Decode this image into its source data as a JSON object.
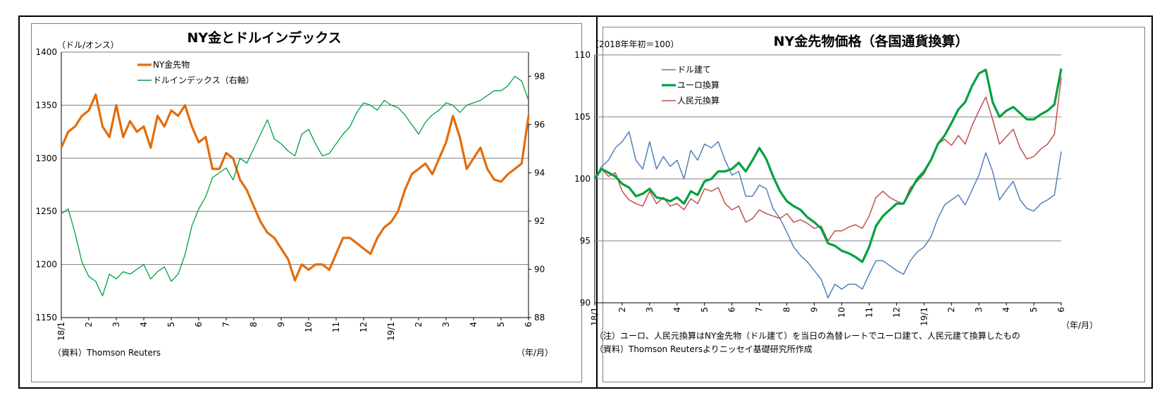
{
  "chart_data": [
    {
      "type": "line",
      "title": "NY金とドルインデックス",
      "ylabel": "（ドル/オンス）",
      "xlabel": "（年/月）",
      "source": "（資料）Thomson Reuters",
      "x_ticks": [
        "18/1",
        "2",
        "3",
        "4",
        "5",
        "6",
        "7",
        "8",
        "9",
        "10",
        "11",
        "12",
        "19/1",
        "2",
        "3",
        "4",
        "5",
        "6"
      ],
      "y_left": {
        "ylim": [
          1150,
          1400
        ],
        "ticks": [
          "1150",
          "1200",
          "1250",
          "1300",
          "1350",
          "1400"
        ]
      },
      "y_right": {
        "ylim": [
          88,
          99
        ],
        "ticks": [
          "88",
          "90",
          "92",
          "94",
          "96",
          "98"
        ]
      },
      "grid": true,
      "legend_position": "top-left",
      "series": [
        {
          "name": "NY金先物",
          "axis": "left",
          "color": "#E36C0A",
          "x": [
            0,
            0.25,
            0.5,
            0.75,
            1,
            1.25,
            1.5,
            1.75,
            2,
            2.25,
            2.5,
            2.75,
            3,
            3.25,
            3.5,
            3.75,
            4,
            4.25,
            4.5,
            4.75,
            5,
            5.25,
            5.5,
            5.75,
            6,
            6.25,
            6.5,
            6.75,
            7,
            7.25,
            7.5,
            7.75,
            8,
            8.25,
            8.5,
            8.75,
            9,
            9.25,
            9.5,
            9.75,
            10,
            10.25,
            10.5,
            10.75,
            11,
            11.25,
            11.5,
            11.75,
            12,
            12.25,
            12.5,
            12.75,
            13,
            13.25,
            13.5,
            13.75,
            14,
            14.25,
            14.5,
            14.75,
            15,
            15.25,
            15.5,
            15.75,
            16,
            16.25,
            16.5,
            16.75,
            17
          ],
          "values": [
            1310,
            1325,
            1330,
            1340,
            1345,
            1360,
            1330,
            1320,
            1350,
            1320,
            1335,
            1325,
            1330,
            1310,
            1340,
            1330,
            1345,
            1340,
            1350,
            1330,
            1315,
            1320,
            1290,
            1290,
            1305,
            1300,
            1280,
            1270,
            1255,
            1240,
            1230,
            1225,
            1215,
            1205,
            1185,
            1200,
            1195,
            1200,
            1200,
            1195,
            1210,
            1225,
            1225,
            1220,
            1215,
            1210,
            1225,
            1235,
            1240,
            1250,
            1270,
            1285,
            1290,
            1295,
            1285,
            1300,
            1315,
            1340,
            1320,
            1290,
            1300,
            1310,
            1290,
            1280,
            1278,
            1285,
            1290,
            1295,
            1340
          ]
        },
        {
          "name": "ドルインデックス（右軸）",
          "axis": "right",
          "color": "#00A040",
          "x": [
            0,
            0.25,
            0.5,
            0.75,
            1,
            1.25,
            1.5,
            1.75,
            2,
            2.25,
            2.5,
            2.75,
            3,
            3.25,
            3.5,
            3.75,
            4,
            4.25,
            4.5,
            4.75,
            5,
            5.25,
            5.5,
            5.75,
            6,
            6.25,
            6.5,
            6.75,
            7,
            7.25,
            7.5,
            7.75,
            8,
            8.25,
            8.5,
            8.75,
            9,
            9.25,
            9.5,
            9.75,
            10,
            10.25,
            10.5,
            10.75,
            11,
            11.25,
            11.5,
            11.75,
            12,
            12.25,
            12.5,
            12.75,
            13,
            13.25,
            13.5,
            13.75,
            14,
            14.25,
            14.5,
            14.75,
            15,
            15.25,
            15.5,
            15.75,
            16,
            16.25,
            16.5,
            16.75,
            17
          ],
          "values": [
            92.3,
            92.5,
            91.5,
            90.3,
            89.7,
            89.5,
            88.9,
            89.8,
            89.6,
            89.9,
            89.8,
            90.0,
            90.2,
            89.6,
            89.9,
            90.1,
            89.5,
            89.8,
            90.6,
            91.8,
            92.5,
            93.0,
            93.8,
            94.0,
            94.2,
            93.7,
            94.6,
            94.4,
            95.0,
            95.6,
            96.2,
            95.4,
            95.2,
            94.9,
            94.7,
            95.6,
            95.8,
            95.2,
            94.7,
            94.8,
            95.2,
            95.6,
            95.9,
            96.5,
            96.9,
            96.8,
            96.6,
            97.0,
            96.8,
            96.7,
            96.4,
            96.0,
            95.6,
            96.1,
            96.4,
            96.6,
            96.9,
            96.8,
            96.5,
            96.8,
            96.9,
            97.0,
            97.2,
            97.4,
            97.4,
            97.6,
            98.0,
            97.8,
            97.0
          ]
        }
      ]
    },
    {
      "type": "line",
      "title": "NY金先物価格（各国通貨換算）",
      "ylabel": "（2018年年初＝100）",
      "xlabel": "（年/月）",
      "note": "（注）ユーロ、人民元換算はNY金先物（ドル建て）を当日の為替レートでユーロ建て、人民元建て換算したもの",
      "source": "（資料）Thomson Reutersよりニッセイ基礎研究所作成",
      "x_ticks": [
        "18/1",
        "2",
        "3",
        "4",
        "5",
        "6",
        "7",
        "8",
        "9",
        "10",
        "11",
        "12",
        "19/1",
        "2",
        "3",
        "4",
        "5",
        "6"
      ],
      "ylim": [
        90,
        110
      ],
      "y_ticks": [
        "90",
        "95",
        "100",
        "105",
        "110"
      ],
      "grid": true,
      "legend_position": "top-left",
      "series": [
        {
          "name": "ドル建て",
          "color": "#4F81BD",
          "x": [
            0,
            0.25,
            0.5,
            0.75,
            1,
            1.25,
            1.5,
            1.75,
            2,
            2.25,
            2.5,
            2.75,
            3,
            3.25,
            3.5,
            3.75,
            4,
            4.25,
            4.5,
            4.75,
            5,
            5.25,
            5.5,
            5.75,
            6,
            6.25,
            6.5,
            6.75,
            7,
            7.25,
            7.5,
            7.75,
            8,
            8.25,
            8.5,
            8.75,
            9,
            9.25,
            9.5,
            9.75,
            10,
            10.25,
            10.5,
            10.75,
            11,
            11.25,
            11.5,
            11.75,
            12,
            12.25,
            12.5,
            12.75,
            13,
            13.25,
            13.5,
            13.75,
            14,
            14.25,
            14.5,
            14.75,
            15,
            15.25,
            15.5,
            15.75,
            16,
            16.25,
            16.5,
            16.75,
            17
          ],
          "values": [
            100.0,
            101.0,
            101.5,
            102.5,
            103.0,
            103.8,
            101.5,
            100.8,
            103.0,
            100.8,
            101.8,
            101.0,
            101.5,
            100.0,
            102.3,
            101.5,
            102.8,
            102.5,
            103.0,
            101.5,
            100.3,
            100.6,
            98.6,
            98.6,
            99.5,
            99.2,
            97.6,
            96.8,
            95.7,
            94.5,
            93.8,
            93.3,
            92.6,
            91.9,
            90.4,
            91.5,
            91.1,
            91.5,
            91.5,
            91.1,
            92.3,
            93.4,
            93.4,
            93.0,
            92.6,
            92.3,
            93.4,
            94.1,
            94.5,
            95.3,
            96.8,
            97.9,
            98.3,
            98.7,
            97.9,
            99.1,
            100.3,
            102.1,
            100.6,
            98.3,
            99.1,
            99.8,
            98.3,
            97.6,
            97.4,
            98.0,
            98.3,
            98.7,
            102.2
          ]
        },
        {
          "name": "ユーロ換算",
          "color": "#00A040",
          "x": [
            0,
            0.25,
            0.5,
            0.75,
            1,
            1.25,
            1.5,
            1.75,
            2,
            2.25,
            2.5,
            2.75,
            3,
            3.25,
            3.5,
            3.75,
            4,
            4.25,
            4.5,
            4.75,
            5,
            5.25,
            5.5,
            5.75,
            6,
            6.25,
            6.5,
            6.75,
            7,
            7.25,
            7.5,
            7.75,
            8,
            8.25,
            8.5,
            8.75,
            9,
            9.25,
            9.5,
            9.75,
            10,
            10.25,
            10.5,
            10.75,
            11,
            11.25,
            11.5,
            11.75,
            12,
            12.25,
            12.5,
            12.75,
            13,
            13.25,
            13.5,
            13.75,
            14,
            14.25,
            14.5,
            14.75,
            15,
            15.25,
            15.5,
            15.75,
            16,
            16.25,
            16.5,
            16.75,
            17
          ],
          "values": [
            100.0,
            100.8,
            100.5,
            100.2,
            99.6,
            99.3,
            98.6,
            98.8,
            99.2,
            98.5,
            98.4,
            98.2,
            98.5,
            98.0,
            99.0,
            98.7,
            99.8,
            100.0,
            100.6,
            100.6,
            100.8,
            101.3,
            100.6,
            101.5,
            102.5,
            101.6,
            100.2,
            99.0,
            98.2,
            97.8,
            97.5,
            96.9,
            96.5,
            96.0,
            94.8,
            94.6,
            94.2,
            94.0,
            93.7,
            93.3,
            94.5,
            96.2,
            97.0,
            97.5,
            98.0,
            98.0,
            99.0,
            100.0,
            100.6,
            101.5,
            102.8,
            103.5,
            104.5,
            105.6,
            106.2,
            107.5,
            108.5,
            108.8,
            106.2,
            105.0,
            105.5,
            105.8,
            105.3,
            104.8,
            104.8,
            105.2,
            105.5,
            106.0,
            108.9
          ]
        },
        {
          "name": "人民元換算",
          "color": "#C0504D",
          "x": [
            0,
            0.25,
            0.5,
            0.75,
            1,
            1.25,
            1.5,
            1.75,
            2,
            2.25,
            2.5,
            2.75,
            3,
            3.25,
            3.5,
            3.75,
            4,
            4.25,
            4.5,
            4.75,
            5,
            5.25,
            5.5,
            5.75,
            6,
            6.25,
            6.5,
            6.75,
            7,
            7.25,
            7.5,
            7.75,
            8,
            8.25,
            8.5,
            8.75,
            9,
            9.25,
            9.5,
            9.75,
            10,
            10.25,
            10.5,
            10.75,
            11,
            11.25,
            11.5,
            11.75,
            12,
            12.25,
            12.5,
            12.75,
            13,
            13.25,
            13.5,
            13.75,
            14,
            14.25,
            14.5,
            14.75,
            15,
            15.25,
            15.5,
            15.75,
            16,
            16.25,
            16.5,
            16.75,
            17
          ],
          "values": [
            100.0,
            100.8,
            100.2,
            100.5,
            99.0,
            98.3,
            98.0,
            97.8,
            99.0,
            98.0,
            98.5,
            97.8,
            98.0,
            97.5,
            98.4,
            98.0,
            99.2,
            99.0,
            99.3,
            98.0,
            97.5,
            97.8,
            96.5,
            96.8,
            97.5,
            97.2,
            97.0,
            96.8,
            97.2,
            96.5,
            96.7,
            96.4,
            96.0,
            96.2,
            95.0,
            95.8,
            95.8,
            96.1,
            96.3,
            96.0,
            97.0,
            98.5,
            99.0,
            98.5,
            98.2,
            98.0,
            99.3,
            99.8,
            100.4,
            101.5,
            102.8,
            103.2,
            102.7,
            103.5,
            102.8,
            104.3,
            105.5,
            106.6,
            104.8,
            102.8,
            103.4,
            104.0,
            102.5,
            101.6,
            101.8,
            102.4,
            102.8,
            103.6,
            108.2
          ]
        }
      ]
    }
  ]
}
